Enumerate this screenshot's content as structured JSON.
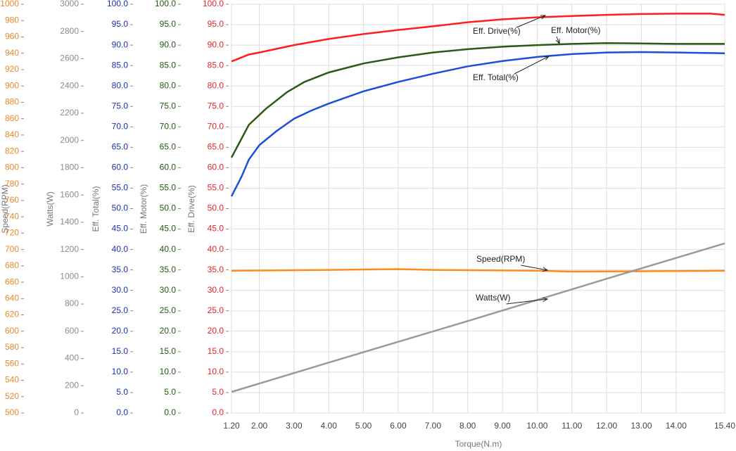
{
  "chart_data": {
    "type": "line",
    "xlabel": "Torque(N.m)",
    "xlim": [
      1.2,
      15.4
    ],
    "xticks": [
      {
        "value": 1.2,
        "label": "1.20"
      },
      {
        "value": 2,
        "label": "2.00"
      },
      {
        "value": 3,
        "label": "3.00"
      },
      {
        "value": 4,
        "label": "4.00"
      },
      {
        "value": 5,
        "label": "5.00"
      },
      {
        "value": 6,
        "label": "6.00"
      },
      {
        "value": 7,
        "label": "7.00"
      },
      {
        "value": 8,
        "label": "8.00"
      },
      {
        "value": 9,
        "label": "9.00"
      },
      {
        "value": 10,
        "label": "10.00"
      },
      {
        "value": 11,
        "label": "11.00"
      },
      {
        "value": 12,
        "label": "12.00"
      },
      {
        "value": 13,
        "label": "13.00"
      },
      {
        "value": 14,
        "label": "14.00"
      },
      {
        "value": 15.4,
        "label": "15.40"
      }
    ],
    "grid": true,
    "y_axes": [
      {
        "label": "Speed(RPM)",
        "color": "#e8892a",
        "lim": [
          500,
          1000
        ],
        "ticks": [
          500,
          520,
          540,
          560,
          580,
          600,
          620,
          640,
          660,
          680,
          700,
          720,
          740,
          760,
          780,
          800,
          820,
          840,
          860,
          880,
          900,
          920,
          940,
          960,
          980,
          1000
        ]
      },
      {
        "label": "Watts(W)",
        "color": "#8c8c8c",
        "lim": [
          0,
          3000
        ],
        "ticks": [
          0,
          200,
          400,
          600,
          800,
          1000,
          1200,
          1400,
          1600,
          1800,
          2000,
          2200,
          2400,
          2600,
          2800,
          3000
        ]
      },
      {
        "label": "Eff. Total(%)",
        "color": "#1a30b4",
        "lim": [
          0,
          100
        ],
        "ticks": [
          {
            "value": 0,
            "label": "0.0"
          },
          {
            "value": 5,
            "label": "5.0"
          },
          {
            "value": 10,
            "label": "10.0"
          },
          {
            "value": 15,
            "label": "15.0"
          },
          {
            "value": 20,
            "label": "20.0"
          },
          {
            "value": 25,
            "label": "25.0"
          },
          {
            "value": 30,
            "label": "30.0"
          },
          {
            "value": 35,
            "label": "35.0"
          },
          {
            "value": 40,
            "label": "40.0"
          },
          {
            "value": 45,
            "label": "45.0"
          },
          {
            "value": 50,
            "label": "50.0"
          },
          {
            "value": 55,
            "label": "55.0"
          },
          {
            "value": 60,
            "label": "60.0"
          },
          {
            "value": 65,
            "label": "65.0"
          },
          {
            "value": 70,
            "label": "70.0"
          },
          {
            "value": 75,
            "label": "75.0"
          },
          {
            "value": 80,
            "label": "80.0"
          },
          {
            "value": 85,
            "label": "85.0"
          },
          {
            "value": 90,
            "label": "90.0"
          },
          {
            "value": 95,
            "label": "95.0"
          },
          {
            "value": 100,
            "label": "100.0"
          }
        ]
      },
      {
        "label": "Eff. Motor(%)",
        "color": "#1f5a10",
        "lim": [
          0,
          100
        ],
        "ticks": [
          {
            "value": 0,
            "label": "0.0"
          },
          {
            "value": 5,
            "label": "5.0"
          },
          {
            "value": 10,
            "label": "10.0"
          },
          {
            "value": 15,
            "label": "15.0"
          },
          {
            "value": 20,
            "label": "20.0"
          },
          {
            "value": 25,
            "label": "25.0"
          },
          {
            "value": 30,
            "label": "30.0"
          },
          {
            "value": 35,
            "label": "35.0"
          },
          {
            "value": 40,
            "label": "40.0"
          },
          {
            "value": 45,
            "label": "45.0"
          },
          {
            "value": 50,
            "label": "50.0"
          },
          {
            "value": 55,
            "label": "55.0"
          },
          {
            "value": 60,
            "label": "60.0"
          },
          {
            "value": 65,
            "label": "65.0"
          },
          {
            "value": 70,
            "label": "70.0"
          },
          {
            "value": 75,
            "label": "75.0"
          },
          {
            "value": 80,
            "label": "80.0"
          },
          {
            "value": 85,
            "label": "85.0"
          },
          {
            "value": 90,
            "label": "90.0"
          },
          {
            "value": 95,
            "label": "95.0"
          },
          {
            "value": 100,
            "label": "100.0"
          }
        ]
      },
      {
        "label": "Eff. Drive(%)",
        "color": "#e8232a",
        "lim": [
          0,
          100
        ],
        "ticks": [
          {
            "value": 0,
            "label": "0.0"
          },
          {
            "value": 5,
            "label": "5.0"
          },
          {
            "value": 10,
            "label": "10.0"
          },
          {
            "value": 15,
            "label": "15.0"
          },
          {
            "value": 20,
            "label": "20.0"
          },
          {
            "value": 25,
            "label": "25.0"
          },
          {
            "value": 30,
            "label": "30.0"
          },
          {
            "value": 35,
            "label": "35.0"
          },
          {
            "value": 40,
            "label": "40.0"
          },
          {
            "value": 45,
            "label": "45.0"
          },
          {
            "value": 50,
            "label": "50.0"
          },
          {
            "value": 55,
            "label": "55.0"
          },
          {
            "value": 60,
            "label": "60.0"
          },
          {
            "value": 65,
            "label": "65.0"
          },
          {
            "value": 70,
            "label": "70.0"
          },
          {
            "value": 75,
            "label": "75.0"
          },
          {
            "value": 80,
            "label": "80.0"
          },
          {
            "value": 85,
            "label": "85.0"
          },
          {
            "value": 90,
            "label": "90.0"
          },
          {
            "value": 95,
            "label": "95.0"
          },
          {
            "value": 100,
            "label": "100.0"
          }
        ]
      }
    ],
    "series": [
      {
        "name": "Eff. Drive(%)",
        "color": "#ff1e1e",
        "axis": 4,
        "x": [
          1.2,
          1.7,
          2,
          3,
          4,
          5,
          6,
          7,
          8,
          9,
          10,
          11,
          12,
          13,
          14,
          15,
          15.4
        ],
        "values": [
          86,
          87.7,
          88.2,
          90,
          91.5,
          92.7,
          93.7,
          94.6,
          95.6,
          96.3,
          96.8,
          97.1,
          97.4,
          97.6,
          97.7,
          97.7,
          97.4
        ]
      },
      {
        "name": "Eff. Motor(%)",
        "color": "#2a5a18",
        "axis": 3,
        "x": [
          1.2,
          1.7,
          2.2,
          2.8,
          3.3,
          4,
          5,
          6,
          7,
          8,
          9,
          10,
          11,
          12,
          13,
          14,
          15.4
        ],
        "values": [
          62.5,
          70.5,
          74.5,
          78.5,
          81,
          83.3,
          85.5,
          87,
          88.2,
          89,
          89.6,
          90,
          90.3,
          90.5,
          90.4,
          90.3,
          90.3
        ]
      },
      {
        "name": "Eff. Total(%)",
        "color": "#1c4fd8",
        "axis": 2,
        "x": [
          1.2,
          1.5,
          1.7,
          2,
          2.5,
          3,
          3.5,
          4,
          5,
          6,
          7,
          8,
          9,
          10,
          11,
          12,
          13,
          14,
          15.4
        ],
        "values": [
          53,
          58,
          62,
          65.5,
          69,
          72,
          74,
          75.7,
          78.7,
          81,
          83,
          84.8,
          86.1,
          87.1,
          87.8,
          88.2,
          88.3,
          88.2,
          88
        ]
      },
      {
        "name": "Speed(RPM)",
        "color": "#ff8c1a",
        "axis": 0,
        "x": [
          1.2,
          4,
          6,
          7,
          10,
          11,
          15.4
        ],
        "values": [
          674,
          675,
          676,
          675,
          674,
          673,
          674
        ]
      },
      {
        "name": "Watts(W)",
        "color": "#9a9a9a",
        "axis": 1,
        "x": [
          1.2,
          4,
          8,
          12,
          15.4
        ],
        "values": [
          155,
          370,
          675,
          985,
          1245
        ]
      }
    ],
    "annotations": [
      "Eff. Drive(%)",
      "Eff. Motor(%)",
      "Eff. Total(%)",
      "Speed(RPM)",
      "Watts(W)"
    ]
  }
}
